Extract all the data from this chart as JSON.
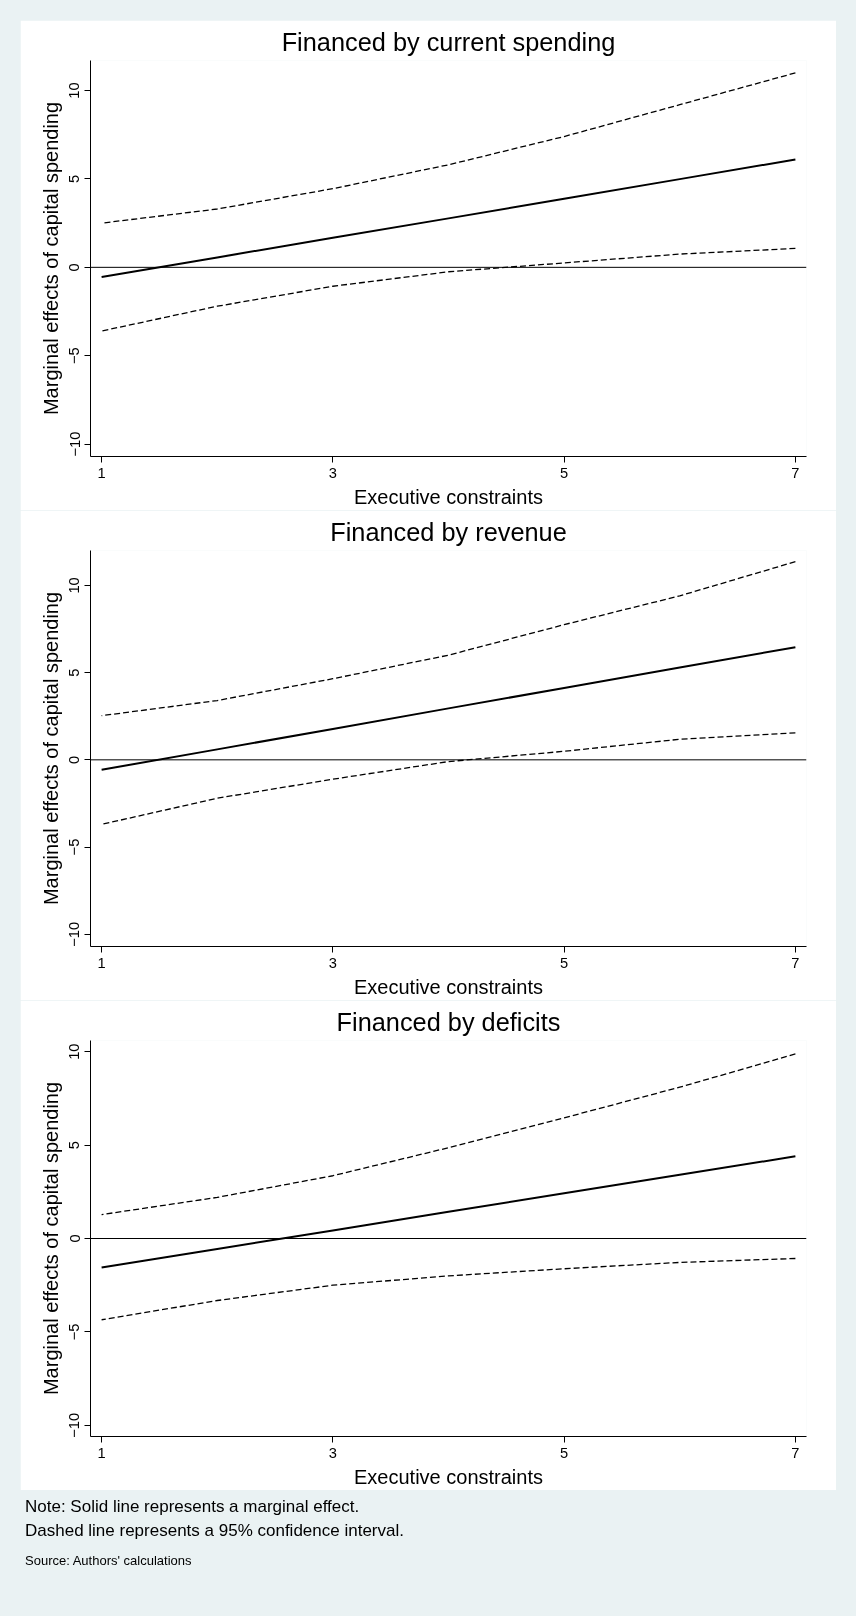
{
  "chart_data": [
    {
      "type": "line",
      "title": "Financed by current spending",
      "xlabel": "Executive constraints",
      "ylabel": "Marginal effects of capital spending",
      "x": [
        1,
        2,
        3,
        4,
        5,
        6,
        7
      ],
      "xlim": [
        0.904,
        7.096
      ],
      "xticks": [
        1,
        3,
        5,
        7
      ],
      "ylim": [
        -10.7,
        11.7
      ],
      "yticks": [
        -10,
        -5,
        0,
        5,
        10
      ],
      "grid": false,
      "series": [
        {
          "color": "#000000",
          "line_style": "solid",
          "values": [
            -0.55,
            0.56,
            1.67,
            2.77,
            3.88,
            4.99,
            6.1
          ]
        },
        {
          "color": "#000000",
          "line_style": "dashed",
          "values": [
            2.5,
            3.3,
            4.45,
            5.8,
            7.4,
            9.2,
            11.0
          ]
        },
        {
          "color": "#000000",
          "line_style": "dashed",
          "values": [
            -3.6,
            -2.2,
            -1.07,
            -0.25,
            0.25,
            0.75,
            1.07
          ]
        }
      ],
      "ref_lines": [
        {
          "axis": "y",
          "value": 0,
          "color": "#000000",
          "line_style": "solid"
        }
      ]
    },
    {
      "type": "line",
      "title": "Financed by revenue",
      "xlabel": "Executive constraints",
      "ylabel": "Marginal effects of capital spending",
      "x": [
        1,
        2,
        3,
        4,
        5,
        6,
        7
      ],
      "xlim": [
        0.904,
        7.096
      ],
      "xticks": [
        1,
        3,
        5,
        7
      ],
      "ylim": [
        -10.7,
        12.0
      ],
      "yticks": [
        -10,
        -5,
        0,
        5,
        10
      ],
      "grid": false,
      "series": [
        {
          "color": "#000000",
          "line_style": "solid",
          "values": [
            -0.57,
            0.6,
            1.77,
            2.95,
            4.12,
            5.29,
            6.46
          ]
        },
        {
          "color": "#000000",
          "line_style": "dashed",
          "values": [
            2.53,
            3.4,
            4.65,
            6.0,
            7.75,
            9.4,
            11.36
          ]
        },
        {
          "color": "#000000",
          "line_style": "dashed",
          "values": [
            -3.7,
            -2.2,
            -1.11,
            -0.1,
            0.49,
            1.18,
            1.55
          ]
        }
      ],
      "ref_lines": [
        {
          "axis": "y",
          "value": 0,
          "color": "#000000",
          "line_style": "solid"
        }
      ]
    },
    {
      "type": "line",
      "title": "Financed by deficits",
      "xlabel": "Executive constraints",
      "ylabel": "Marginal effects of capital spending",
      "x": [
        1,
        2,
        3,
        4,
        5,
        6,
        7
      ],
      "xlim": [
        0.904,
        7.096
      ],
      "xticks": [
        1,
        3,
        5,
        7
      ],
      "ylim": [
        -10.6,
        10.6
      ],
      "yticks": [
        -10,
        -5,
        0,
        5,
        10
      ],
      "grid": false,
      "series": [
        {
          "color": "#000000",
          "line_style": "solid",
          "values": [
            -1.55,
            -0.56,
            0.43,
            1.43,
            2.42,
            3.41,
            4.4
          ]
        },
        {
          "color": "#000000",
          "line_style": "dashed",
          "values": [
            1.28,
            2.2,
            3.36,
            4.86,
            6.46,
            8.1,
            9.88
          ]
        },
        {
          "color": "#000000",
          "line_style": "dashed",
          "values": [
            -4.35,
            -3.32,
            -2.5,
            -2.0,
            -1.62,
            -1.28,
            -1.07
          ]
        }
      ],
      "ref_lines": [
        {
          "axis": "y",
          "value": 0,
          "color": "#000000",
          "line_style": "solid"
        }
      ],
      "annotations": [
        "Note: Solid line represents a marginal effect.",
        "Dashed line represents a 95% confidence interval.",
        "Source: Authors' calculations"
      ]
    }
  ]
}
